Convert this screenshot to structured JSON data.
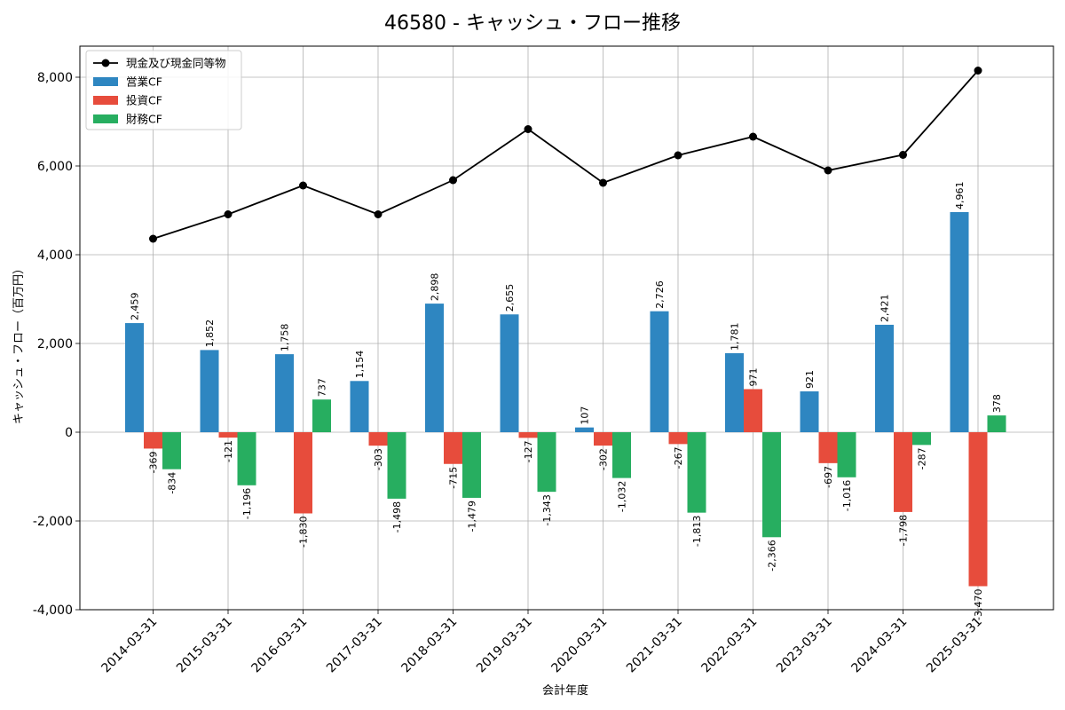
{
  "chart_data": {
    "type": "bar",
    "title": "46580 - キャッシュ・フロー推移",
    "xlabel": "会計年度",
    "ylabel": "キャッシュ・フロー（百万円）",
    "categories": [
      "2014-03-31",
      "2015-03-31",
      "2016-03-31",
      "2017-03-31",
      "2018-03-31",
      "2019-03-31",
      "2020-03-31",
      "2021-03-31",
      "2022-03-31",
      "2023-03-31",
      "2024-03-31",
      "2025-03-31"
    ],
    "ylim": [
      -4000,
      8700
    ],
    "yticks": [
      -4000,
      -2000,
      0,
      2000,
      4000,
      6000,
      8000
    ],
    "ytick_labels": [
      "-4,000",
      "-2,000",
      "0",
      "2,000",
      "4,000",
      "6,000",
      "8,000"
    ],
    "grid": true,
    "legend_position": "top-left",
    "series": [
      {
        "name": "営業CF",
        "kind": "bar",
        "color": "#2e86c1",
        "values": [
          2459,
          1852,
          1758,
          1154,
          2898,
          2655,
          107,
          2726,
          1781,
          921,
          2421,
          4961
        ],
        "labels": [
          "2,459",
          "1,852",
          "1,758",
          "1,154",
          "2,898",
          "2,655",
          "107",
          "2,726",
          "1,781",
          "921",
          "2,421",
          "4,961"
        ]
      },
      {
        "name": "投資CF",
        "kind": "bar",
        "color": "#e74c3c",
        "values": [
          -369,
          -121,
          -1830,
          -303,
          -715,
          -127,
          -302,
          -267,
          971,
          -697,
          -1798,
          -3470
        ],
        "labels": [
          "-369",
          "-121",
          "-1,830",
          "-303",
          "-715",
          "-127",
          "-302",
          "-267",
          "971",
          "-697",
          "-1,798",
          "-3,470"
        ]
      },
      {
        "name": "財務CF",
        "kind": "bar",
        "color": "#27ae60",
        "values": [
          -834,
          -1196,
          737,
          -1498,
          -1479,
          -1343,
          -1032,
          -1813,
          -2366,
          -1016,
          -287,
          378
        ],
        "labels": [
          "-834",
          "-1,196",
          "737",
          "-1,498",
          "-1,479",
          "-1,343",
          "-1,032",
          "-1,813",
          "-2,366",
          "-1,016",
          "-287",
          "378"
        ]
      },
      {
        "name": "現金及び現金同等物",
        "kind": "line",
        "color": "#000000",
        "values": [
          4360,
          4910,
          5560,
          4910,
          5680,
          6830,
          5620,
          6240,
          6660,
          5900,
          6250,
          8150
        ]
      }
    ]
  }
}
